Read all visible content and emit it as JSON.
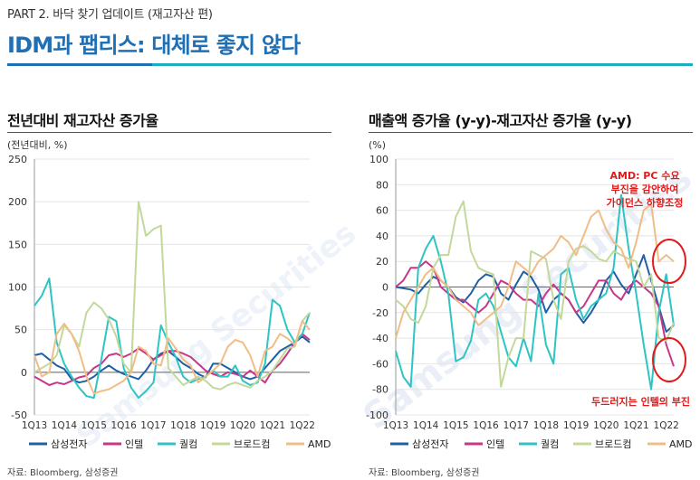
{
  "header": {
    "section": "PART 2. 바닥 찾기 업데이트 (재고자산 편)",
    "title": "IDM과 팹리스: 대체로 좋지 않다"
  },
  "watermark": "Samsung Securities",
  "colors": {
    "삼성전자": "#1f5fa8",
    "인텔": "#c8368a",
    "퀄컴": "#2fc4c4",
    "브로드컴": "#c3d89a",
    "AMD": "#f1bd86",
    "accent": "#1f6fb5",
    "annotation": "#e01b1b"
  },
  "charts": {
    "left": {
      "title": "전년대비 재고자산 증가율",
      "unit": "(전년대비, %)",
      "source": "자료: Bloomberg, 삼성증권"
    },
    "right": {
      "title": "매출액 증가율 (y-y)-재고자산 증가율 (y-y)",
      "unit": "(%)",
      "source": "자료: Bloomberg, 삼성증권",
      "annotation_top": [
        "AMD: PC 수요",
        "부진을 감안하여",
        "가이던스 하향조정"
      ],
      "annotation_bottom": "두드러지는 인텔의 부진"
    }
  },
  "chart_data": [
    {
      "type": "line",
      "x": [
        "1Q13",
        "2Q13",
        "3Q13",
        "4Q13",
        "1Q14",
        "2Q14",
        "3Q14",
        "4Q14",
        "1Q15",
        "2Q15",
        "3Q15",
        "4Q15",
        "1Q16",
        "2Q16",
        "3Q16",
        "4Q16",
        "1Q17",
        "2Q17",
        "3Q17",
        "4Q17",
        "1Q18",
        "2Q18",
        "3Q18",
        "4Q18",
        "1Q19",
        "2Q19",
        "3Q19",
        "4Q19",
        "1Q20",
        "2Q20",
        "3Q20",
        "4Q20",
        "1Q21",
        "2Q21",
        "3Q21",
        "4Q21",
        "1Q22",
        "2Q22"
      ],
      "tick_labels": [
        "1Q13",
        "1Q14",
        "1Q15",
        "1Q16",
        "1Q17",
        "1Q18",
        "1Q19",
        "1Q20",
        "1Q21",
        "1Q22"
      ],
      "ylim": [
        -50,
        250
      ],
      "yticks": [
        -50,
        0,
        50,
        100,
        150,
        200,
        250
      ],
      "series": [
        {
          "name": "삼성전자",
          "values": [
            20,
            22,
            15,
            8,
            4,
            -8,
            -12,
            -10,
            -5,
            2,
            8,
            2,
            -2,
            -5,
            -8,
            2,
            15,
            22,
            25,
            18,
            10,
            5,
            -2,
            -6,
            10,
            10,
            5,
            0,
            -5,
            -8,
            -5,
            5,
            15,
            25,
            30,
            35,
            42,
            35
          ]
        },
        {
          "name": "인텔",
          "values": [
            -5,
            -10,
            -15,
            -12,
            -14,
            -10,
            -6,
            -4,
            5,
            10,
            20,
            22,
            18,
            22,
            28,
            22,
            15,
            20,
            25,
            25,
            22,
            18,
            10,
            2,
            -2,
            -5,
            0,
            -2,
            -5,
            2,
            -5,
            -12,
            2,
            10,
            22,
            35,
            45,
            38
          ]
        },
        {
          "name": "퀄컴",
          "values": [
            78,
            90,
            110,
            35,
            10,
            -5,
            -18,
            -28,
            -30,
            15,
            65,
            60,
            5,
            -18,
            -30,
            -22,
            -12,
            55,
            35,
            18,
            -5,
            -12,
            -8,
            -5,
            2,
            -5,
            -5,
            8,
            -10,
            -15,
            -12,
            10,
            85,
            78,
            50,
            35,
            45,
            70
          ]
        },
        {
          "name": "브로드컴",
          "values": [
            0,
            5,
            10,
            20,
            55,
            45,
            30,
            70,
            82,
            75,
            62,
            42,
            10,
            0,
            200,
            160,
            168,
            172,
            5,
            -5,
            -15,
            -10,
            -5,
            -10,
            -18,
            -20,
            -15,
            -12,
            -15,
            -18,
            -10,
            -5,
            2,
            15,
            28,
            30,
            60,
            70
          ]
        },
        {
          "name": "AMD",
          "values": [
            20,
            -5,
            0,
            45,
            57,
            45,
            25,
            -5,
            -25,
            -22,
            -20,
            -15,
            -10,
            0,
            30,
            25,
            10,
            8,
            40,
            28,
            15,
            8,
            -12,
            -5,
            2,
            10,
            30,
            38,
            35,
            20,
            -5,
            25,
            30,
            45,
            40,
            32,
            60,
            50
          ]
        }
      ]
    },
    {
      "type": "line",
      "x": [
        "1Q13",
        "2Q13",
        "3Q13",
        "4Q13",
        "1Q14",
        "2Q14",
        "3Q14",
        "4Q14",
        "1Q15",
        "2Q15",
        "3Q15",
        "4Q15",
        "1Q16",
        "2Q16",
        "3Q16",
        "4Q16",
        "1Q17",
        "2Q17",
        "3Q17",
        "4Q17",
        "1Q18",
        "2Q18",
        "3Q18",
        "4Q18",
        "1Q19",
        "2Q19",
        "3Q19",
        "4Q19",
        "1Q20",
        "2Q20",
        "3Q20",
        "4Q20",
        "1Q21",
        "2Q21",
        "3Q21",
        "4Q21",
        "1Q22",
        "2Q22"
      ],
      "tick_labels": [
        "1Q13",
        "1Q14",
        "1Q15",
        "1Q16",
        "1Q17",
        "1Q18",
        "1Q19",
        "1Q20",
        "1Q21",
        "1Q22"
      ],
      "ylim": [
        -100,
        100
      ],
      "yticks": [
        -100,
        -80,
        -60,
        -40,
        -20,
        0,
        20,
        40,
        60,
        80,
        100
      ],
      "series": [
        {
          "name": "삼성전자",
          "values": [
            0,
            -1,
            -2,
            -5,
            2,
            8,
            5,
            0,
            -8,
            -12,
            -5,
            5,
            10,
            8,
            -5,
            -10,
            2,
            12,
            8,
            -2,
            -20,
            -10,
            -5,
            -10,
            -20,
            -28,
            -20,
            -10,
            5,
            12,
            2,
            -5,
            10,
            25,
            5,
            -15,
            -35,
            -30
          ]
        },
        {
          "name": "인텔",
          "values": [
            0,
            5,
            15,
            15,
            20,
            15,
            0,
            -5,
            -10,
            -10,
            -15,
            -20,
            -15,
            -5,
            5,
            2,
            -5,
            -10,
            -10,
            -15,
            -5,
            2,
            -5,
            -10,
            -20,
            -15,
            -5,
            5,
            5,
            -5,
            -10,
            0,
            5,
            0,
            -5,
            -15,
            -45,
            -62
          ]
        },
        {
          "name": "퀄컴",
          "values": [
            -50,
            -70,
            -78,
            15,
            30,
            40,
            20,
            -5,
            -58,
            -55,
            -42,
            -10,
            -5,
            -15,
            -35,
            -55,
            -62,
            -40,
            -58,
            -5,
            -45,
            -60,
            10,
            15,
            -10,
            -25,
            -15,
            -10,
            -5,
            15,
            72,
            30,
            -5,
            -45,
            -80,
            -20,
            10,
            -30
          ]
        },
        {
          "name": "브로드컴",
          "values": [
            -10,
            -15,
            -25,
            -28,
            -15,
            15,
            25,
            25,
            55,
            67,
            28,
            15,
            12,
            10,
            -78,
            -55,
            -40,
            -40,
            28,
            25,
            22,
            -10,
            -25,
            20,
            30,
            32,
            28,
            22,
            20,
            28,
            25,
            22,
            20,
            0,
            10,
            -40,
            -42,
            -28
          ]
        },
        {
          "name": "AMD",
          "values": [
            -40,
            -20,
            -10,
            0,
            10,
            15,
            5,
            0,
            -10,
            -15,
            -20,
            -30,
            -25,
            -20,
            -15,
            0,
            20,
            15,
            10,
            20,
            25,
            30,
            40,
            35,
            25,
            40,
            55,
            60,
            45,
            35,
            30,
            15,
            35,
            60,
            65,
            20,
            25,
            20
          ]
        }
      ]
    }
  ]
}
